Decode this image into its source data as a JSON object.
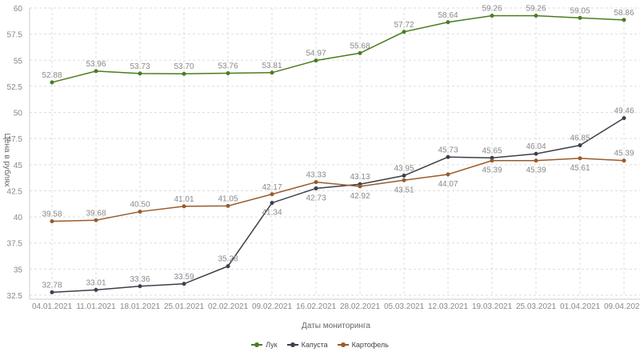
{
  "chart_data": {
    "type": "line",
    "title": "",
    "xlabel": "Даты мониторинга",
    "ylabel": "Цена в рублях",
    "ylim": [
      32.5,
      60
    ],
    "yticks": [
      "32.5",
      "35",
      "37.5",
      "40",
      "42.5",
      "45",
      "47.5",
      "50",
      "52.5",
      "55",
      "57.5",
      "60"
    ],
    "grid": true,
    "legend": "bottom",
    "categories": [
      "04.01.2021",
      "11.01.2021",
      "18.01.2021",
      "25.01.2021",
      "02.02.2021",
      "09.02.2021",
      "16.02.2021",
      "28.02.2021",
      "05.03.2021",
      "12.03.2021",
      "19.03.2021",
      "25.03.2021",
      "01.04.2021",
      "09.04.2021"
    ],
    "series": [
      {
        "name": "Лук",
        "color": "#4a7d1f",
        "values": [
          52.88,
          53.96,
          53.73,
          53.7,
          53.76,
          53.81,
          54.97,
          55.68,
          57.72,
          58.64,
          59.26,
          59.26,
          59.05,
          58.86
        ]
      },
      {
        "name": "Капуста",
        "color": "#3d3f4a",
        "values": [
          32.78,
          33.01,
          33.36,
          33.59,
          35.28,
          41.34,
          42.73,
          43.13,
          43.95,
          45.73,
          45.65,
          46.04,
          46.85,
          49.46
        ]
      },
      {
        "name": "Картофель",
        "color": "#9a5b2a",
        "values": [
          39.58,
          39.68,
          40.5,
          41.01,
          41.05,
          42.17,
          43.33,
          42.92,
          43.51,
          44.07,
          45.39,
          45.39,
          45.61,
          45.39
        ]
      }
    ]
  }
}
